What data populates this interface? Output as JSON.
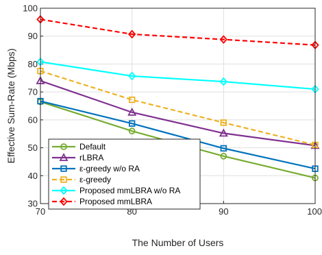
{
  "chart_data": {
    "type": "line",
    "title": "",
    "xlabel": "The Number of Users",
    "ylabel": "Effective Sum-Rate (Mbps)",
    "x": [
      70,
      80,
      90,
      100
    ],
    "xlim": [
      70,
      100
    ],
    "ylim": [
      30,
      100
    ],
    "xticks": [
      "70",
      "80",
      "90",
      "100"
    ],
    "yticks": [
      "30",
      "40",
      "50",
      "60",
      "70",
      "80",
      "90",
      "100"
    ],
    "grid": true,
    "legend_position": "bottom-left",
    "series": [
      {
        "name": "Default",
        "values": [
          66.5,
          56.0,
          47.0,
          39.2
        ],
        "color": "#77ac30",
        "dash": "solid",
        "marker": "circle"
      },
      {
        "name": "rLBRA",
        "values": [
          74.0,
          62.7,
          55.2,
          50.8
        ],
        "color": "#7e2f8e",
        "dash": "solid",
        "marker": "triangle"
      },
      {
        "name": "ε-greedy w/o RA",
        "values": [
          66.7,
          58.7,
          49.8,
          42.5
        ],
        "color": "#0072bd",
        "dash": "solid",
        "marker": "square"
      },
      {
        "name": "ε-greedy",
        "values": [
          77.5,
          67.2,
          59.0,
          51.0
        ],
        "color": "#edb120",
        "dash": "dashed",
        "marker": "square"
      },
      {
        "name": "Proposed mmLBRA w/o RA",
        "values": [
          80.8,
          75.7,
          73.7,
          71.0
        ],
        "color": "#00ffff",
        "dash": "solid",
        "marker": "diamond"
      },
      {
        "name": "Proposed mmLBRA",
        "values": [
          96.0,
          90.7,
          88.8,
          86.8
        ],
        "color": "#ff0000",
        "dash": "dashed",
        "marker": "diamond"
      }
    ]
  }
}
